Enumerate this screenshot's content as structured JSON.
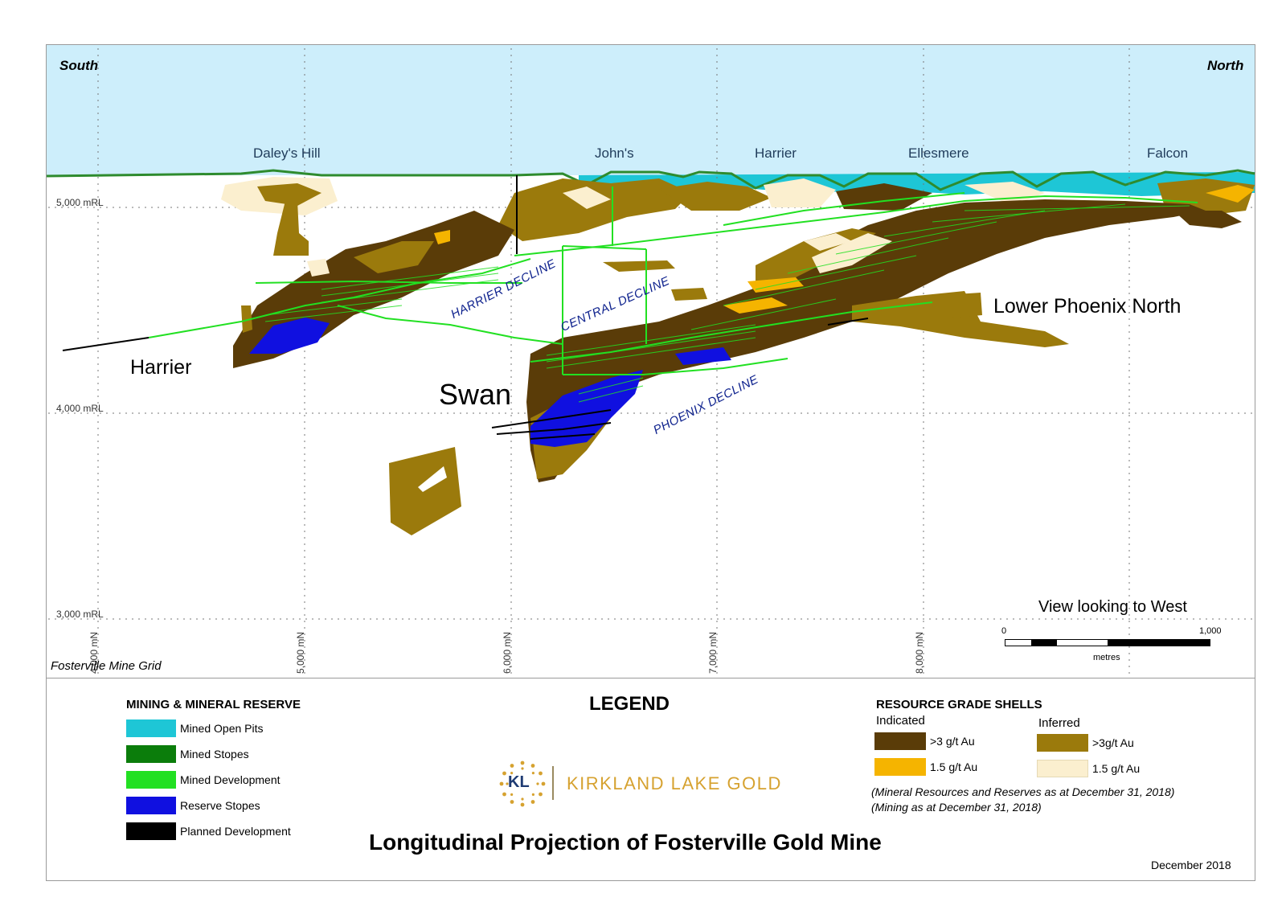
{
  "map": {
    "south_label": "South",
    "north_label": "North",
    "surface_areas": [
      "Daley's Hill",
      "John's",
      "Harrier",
      "Ellesmere",
      "Falcon"
    ],
    "elevation_labels": [
      "5,000 mRL",
      "4,000 mRL",
      "3,000 mRL"
    ],
    "northing_labels": [
      "4,000 mN",
      "5,000 mN",
      "6,000 mN",
      "7,000 mN",
      "8,000 mN"
    ],
    "zones": {
      "harrier": "Harrier",
      "swan": "Swan",
      "lower_phoenix_north": "Lower Phoenix North"
    },
    "declines": {
      "harrier": "HARRIER DECLINE",
      "central": "CENTRAL DECLINE",
      "phoenix": "PHOENIX DECLINE"
    },
    "view_label": "View looking to West",
    "scale": {
      "min": "0",
      "max": "1,000",
      "unit": "metres"
    },
    "grid_name": "Fosterville Mine Grid",
    "colors": {
      "sky": "#cdeefb",
      "surface_line": "#2e8b2e",
      "open_pit": "#1ec6d6"
    }
  },
  "legend": {
    "title": "LEGEND",
    "mining_header": "MINING & MINERAL RESERVE",
    "mining_items": [
      {
        "label": "Mined Open Pits",
        "color": "#1ec6d6"
      },
      {
        "label": "Mined Stopes",
        "color": "#0b7d0b"
      },
      {
        "label": "Mined Development",
        "color": "#22e022"
      },
      {
        "label": "Reserve Stopes",
        "color": "#1010e0"
      },
      {
        "label": "Planned Development",
        "color": "#000000"
      }
    ],
    "resource_header": "RESOURCE GRADE SHELLS",
    "indicated_header": "Indicated",
    "inferred_header": "Inferred",
    "indicated_items": [
      {
        "label": ">3 g/t Au",
        "color": "#5a3c08"
      },
      {
        "label": "1.5 g/t Au",
        "color": "#f5b400"
      }
    ],
    "inferred_items": [
      {
        "label": ">3g/t Au",
        "color": "#9b7a0c"
      },
      {
        "label": "1.5 g/t Au",
        "color": "#fbefcf"
      }
    ],
    "note_1": "(Mineral Resources and Reserves as at December 31, 2018)",
    "note_2": "(Mining as at December 31, 2018)"
  },
  "logo": {
    "initials": "KL",
    "name": "KIRKLAND LAKE GOLD"
  },
  "title": "Longitudinal Projection of Fosterville Gold Mine",
  "date": "December 2018"
}
